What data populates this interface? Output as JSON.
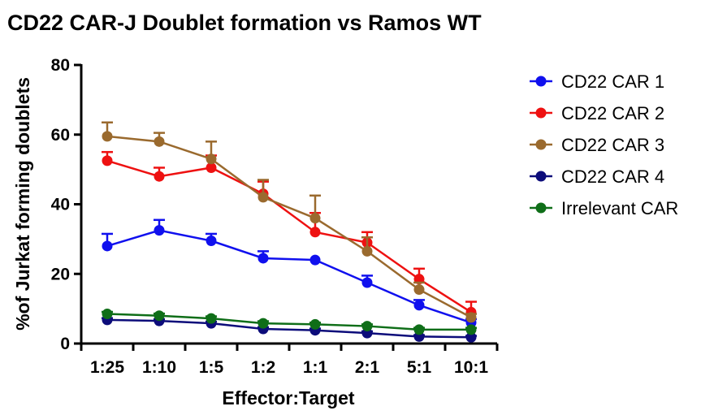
{
  "chart_data": {
    "type": "line",
    "title": "CD22 CAR-J Doublet formation vs Ramos  WT",
    "xlabel": "Effector:Target",
    "ylabel": "%of Jurkat forming doublets",
    "categories": [
      "1:25",
      "1:10",
      "1:5",
      "1:2",
      "1:1",
      "2:1",
      "5:1",
      "10:1"
    ],
    "ylim": [
      0,
      80
    ],
    "yticks": [
      0,
      20,
      40,
      60,
      80
    ],
    "grid": false,
    "legend_position": "right",
    "series": [
      {
        "name": "CD22 CAR 1",
        "color": "#1010ee",
        "values": [
          28,
          32.5,
          29.5,
          24.5,
          24,
          17.5,
          11,
          6
        ],
        "errors": [
          3.5,
          3,
          2,
          2,
          0,
          2,
          1.5,
          1
        ]
      },
      {
        "name": "CD22 CAR 2",
        "color": "#ee1111",
        "values": [
          52.5,
          48,
          50.5,
          43,
          32,
          29,
          18.5,
          9
        ],
        "errors": [
          2.5,
          2.5,
          3.5,
          3.5,
          5.5,
          3,
          3,
          3
        ]
      },
      {
        "name": "CD22 CAR 3",
        "color": "#9a6a2e",
        "values": [
          59.5,
          58,
          53,
          42,
          36,
          26.5,
          15.5,
          7.5
        ],
        "errors": [
          4,
          2.5,
          5,
          5,
          6.5,
          4,
          2,
          1
        ]
      },
      {
        "name": "CD22 CAR 4",
        "color": "#0c0c7a",
        "values": [
          6.8,
          6.5,
          5.8,
          4.2,
          3.8,
          3,
          2,
          1.8
        ],
        "errors": [
          0.5,
          0.5,
          0.5,
          0.5,
          0.5,
          0.5,
          0.4,
          0.4
        ]
      },
      {
        "name": "Irrelevant CAR",
        "color": "#0f6e18",
        "values": [
          8.5,
          8,
          7.2,
          5.8,
          5.5,
          5,
          4,
          4
        ],
        "errors": [
          0.6,
          0.6,
          0.6,
          0.6,
          0.5,
          0.5,
          0.5,
          0.5
        ]
      }
    ]
  }
}
